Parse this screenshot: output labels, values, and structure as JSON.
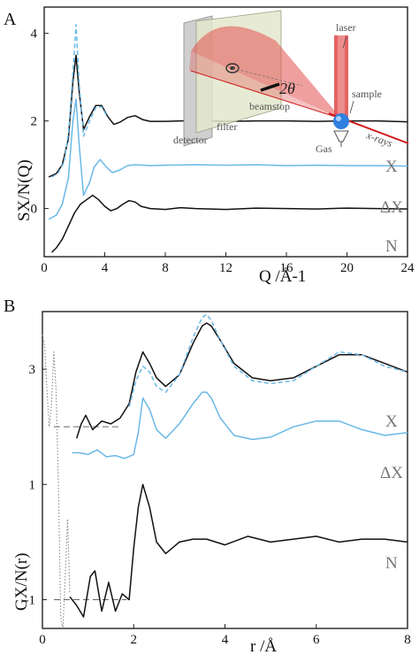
{
  "panels": [
    {
      "label": "A",
      "xlabel": "Q /Å-1",
      "ylabel": "SX/N(Q)",
      "xticks": [
        0,
        4,
        8,
        12,
        16,
        20,
        24
      ],
      "yticks": [
        0,
        2,
        4
      ],
      "xlim": [
        0,
        24
      ],
      "ylim": [
        -1.1,
        4.6
      ],
      "series_labels": [
        "X",
        "ΔX",
        "N"
      ],
      "inset": {
        "labels": {
          "laser": "laser",
          "sample": "sample",
          "beamstop": "beamstop",
          "filter": "filter",
          "detector": "detector",
          "xrays": "x-rays",
          "gas": "Gas",
          "angle": "2θ"
        },
        "colors": {
          "laser": "#e04848",
          "sample": "#2f7fe0",
          "xray": "#d01818",
          "filter": "#dfe3c4",
          "detector": "#c9c9c9"
        }
      }
    },
    {
      "label": "B",
      "xlabel": "r /Å",
      "ylabel": "GX/N(r)",
      "xticks": [
        0,
        2,
        4,
        6,
        8
      ],
      "yticks": [
        -1,
        1,
        3
      ],
      "xlim": [
        0,
        8
      ],
      "ylim": [
        -1.5,
        4.0
      ],
      "series_labels": [
        "X",
        "ΔX",
        "N"
      ]
    }
  ],
  "chart_data": [
    {
      "type": "line",
      "x_unit": "Å-1",
      "series": [
        {
          "color": "#111111",
          "style": "solid",
          "x": [
            0.3,
            0.8,
            1.2,
            1.6,
            1.9,
            2.1,
            2.3,
            2.6,
            3.0,
            3.4,
            3.8,
            4.2,
            4.6,
            5.0,
            5.5,
            6.0,
            6.5,
            7.0,
            8,
            10,
            12,
            14,
            16,
            18,
            20,
            22,
            24
          ],
          "y": [
            0.72,
            0.8,
            1.0,
            1.6,
            2.9,
            3.5,
            2.7,
            1.8,
            2.1,
            2.35,
            2.35,
            2.1,
            1.92,
            1.97,
            2.08,
            2.12,
            2.03,
            1.99,
            1.99,
            2.01,
            1.99,
            2.0,
            2.0,
            1.99,
            2.0,
            2.0,
            1.98
          ]
        },
        {
          "color": "#6ab8e6",
          "style": "dashed",
          "x": [
            0.5,
            0.9,
            1.3,
            1.6,
            1.9,
            2.1,
            2.3,
            2.6,
            3.0,
            3.4,
            3.8,
            4.2
          ],
          "y": [
            0.72,
            0.8,
            1.05,
            1.7,
            3.1,
            4.2,
            2.9,
            1.65,
            2.0,
            2.3,
            2.32,
            2.08
          ]
        },
        {
          "color": "#6ab8e6",
          "style": "solid",
          "x": [
            0.3,
            0.8,
            1.2,
            1.6,
            1.9,
            2.1,
            2.3,
            2.6,
            3.0,
            3.3,
            3.7,
            4.1,
            4.5,
            5.0,
            5.5,
            6.0,
            7,
            8,
            10,
            12,
            14,
            16,
            18,
            20,
            22,
            24
          ],
          "y": [
            -0.25,
            -0.15,
            0.1,
            0.7,
            2.0,
            2.5,
            1.5,
            0.3,
            0.6,
            0.95,
            1.12,
            0.95,
            0.82,
            0.88,
            0.98,
            1.0,
            0.98,
            0.99,
            1.0,
            0.99,
            1.0,
            0.98,
            0.99,
            0.98,
            0.98,
            0.97
          ]
        },
        {
          "color": "#111111",
          "style": "solid",
          "x": [
            0.5,
            0.8,
            1.2,
            1.6,
            2.0,
            2.4,
            2.8,
            3.2,
            3.6,
            4.0,
            4.4,
            4.8,
            5.2,
            5.6,
            6.0,
            6.4,
            7,
            8,
            9,
            10,
            12,
            14,
            16,
            18,
            20,
            22,
            24
          ],
          "y": [
            -1.0,
            -0.9,
            -0.7,
            -0.4,
            -0.1,
            0.1,
            0.2,
            0.3,
            0.2,
            0.05,
            -0.05,
            0.0,
            0.1,
            0.18,
            0.15,
            0.05,
            0.0,
            -0.02,
            0.02,
            0.0,
            -0.02,
            0.01,
            0.0,
            -0.01,
            0.01,
            0.0,
            -0.01
          ]
        }
      ]
    },
    {
      "type": "line",
      "x_unit": "Å",
      "series": [
        {
          "color": "#111111",
          "style": "solid",
          "x": [
            0.75,
            0.85,
            0.95,
            1.1,
            1.3,
            1.5,
            1.7,
            1.9,
            2.05,
            2.2,
            2.35,
            2.5,
            2.7,
            3.0,
            3.3,
            3.5,
            3.6,
            3.7,
            3.9,
            4.2,
            4.6,
            5.0,
            5.5,
            6.0,
            6.5,
            7.0,
            7.5,
            8.0
          ],
          "y": [
            1.8,
            2.05,
            2.2,
            1.95,
            2.1,
            2.05,
            2.15,
            2.4,
            2.95,
            3.3,
            3.1,
            2.85,
            2.7,
            2.9,
            3.45,
            3.75,
            3.8,
            3.75,
            3.5,
            3.1,
            2.85,
            2.8,
            2.85,
            3.05,
            3.25,
            3.25,
            3.1,
            2.95
          ]
        },
        {
          "color": "#6ab8e6",
          "style": "dashed",
          "x": [
            1.9,
            2.05,
            2.2,
            2.35,
            2.5,
            2.7,
            3.0,
            3.3,
            3.5,
            3.6,
            3.7,
            3.9,
            4.2,
            4.6,
            5.0,
            5.5,
            6.0,
            6.5,
            7.0,
            7.5,
            8.0
          ],
          "y": [
            2.35,
            2.8,
            3.05,
            2.95,
            2.7,
            2.6,
            2.9,
            3.55,
            3.9,
            3.95,
            3.85,
            3.5,
            3.05,
            2.8,
            2.75,
            2.8,
            3.05,
            3.3,
            3.25,
            3.05,
            2.95
          ]
        },
        {
          "color": "#6ab8e6",
          "style": "solid",
          "x": [
            0.65,
            0.8,
            1.0,
            1.2,
            1.4,
            1.6,
            1.8,
            2.0,
            2.1,
            2.2,
            2.35,
            2.5,
            2.7,
            3.0,
            3.3,
            3.5,
            3.6,
            3.7,
            3.9,
            4.2,
            4.6,
            5.0,
            5.5,
            6.0,
            6.5,
            7.0,
            7.5,
            8.0
          ],
          "y": [
            1.55,
            1.55,
            1.52,
            1.6,
            1.48,
            1.5,
            1.45,
            1.52,
            1.9,
            2.5,
            2.3,
            1.95,
            1.8,
            2.05,
            2.4,
            2.6,
            2.6,
            2.5,
            2.15,
            1.85,
            1.78,
            1.82,
            2.0,
            2.1,
            2.1,
            1.95,
            1.85,
            1.9
          ]
        },
        {
          "color": "#111111",
          "style": "solid",
          "x": [
            0.6,
            0.75,
            0.9,
            1.05,
            1.15,
            1.3,
            1.45,
            1.6,
            1.75,
            1.9,
            2.0,
            2.1,
            2.2,
            2.35,
            2.5,
            2.7,
            3.0,
            3.3,
            3.6,
            4.0,
            4.5,
            5.0,
            5.5,
            6.0,
            6.5,
            7.0,
            7.5,
            8.0
          ],
          "y": [
            -0.95,
            -1.1,
            -1.3,
            -0.6,
            -0.5,
            -1.2,
            -0.7,
            -1.2,
            -0.9,
            -1.0,
            -0.1,
            0.6,
            1.0,
            0.6,
            0.0,
            -0.2,
            0.0,
            0.05,
            0.05,
            -0.05,
            0.1,
            0.0,
            0.05,
            0.1,
            0.0,
            0.05,
            0.05,
            0.0
          ]
        },
        {
          "color": "#888888",
          "style": "dotted",
          "x": [
            0.0,
            0.05,
            0.1,
            0.15,
            0.2,
            0.25,
            0.3,
            0.35,
            0.4,
            0.45,
            0.5,
            0.55,
            0.6
          ],
          "y": [
            3.6,
            3.4,
            2.6,
            2.0,
            2.4,
            3.3,
            2.6,
            1.0,
            -1.3,
            -1.5,
            -0.6,
            0.4,
            -0.9
          ]
        }
      ],
      "reference_lines": [
        {
          "x": [
            0.25,
            1.7
          ],
          "y": 2.0
        },
        {
          "x": [
            0.25,
            1.85
          ],
          "y": -1.0
        }
      ]
    }
  ]
}
